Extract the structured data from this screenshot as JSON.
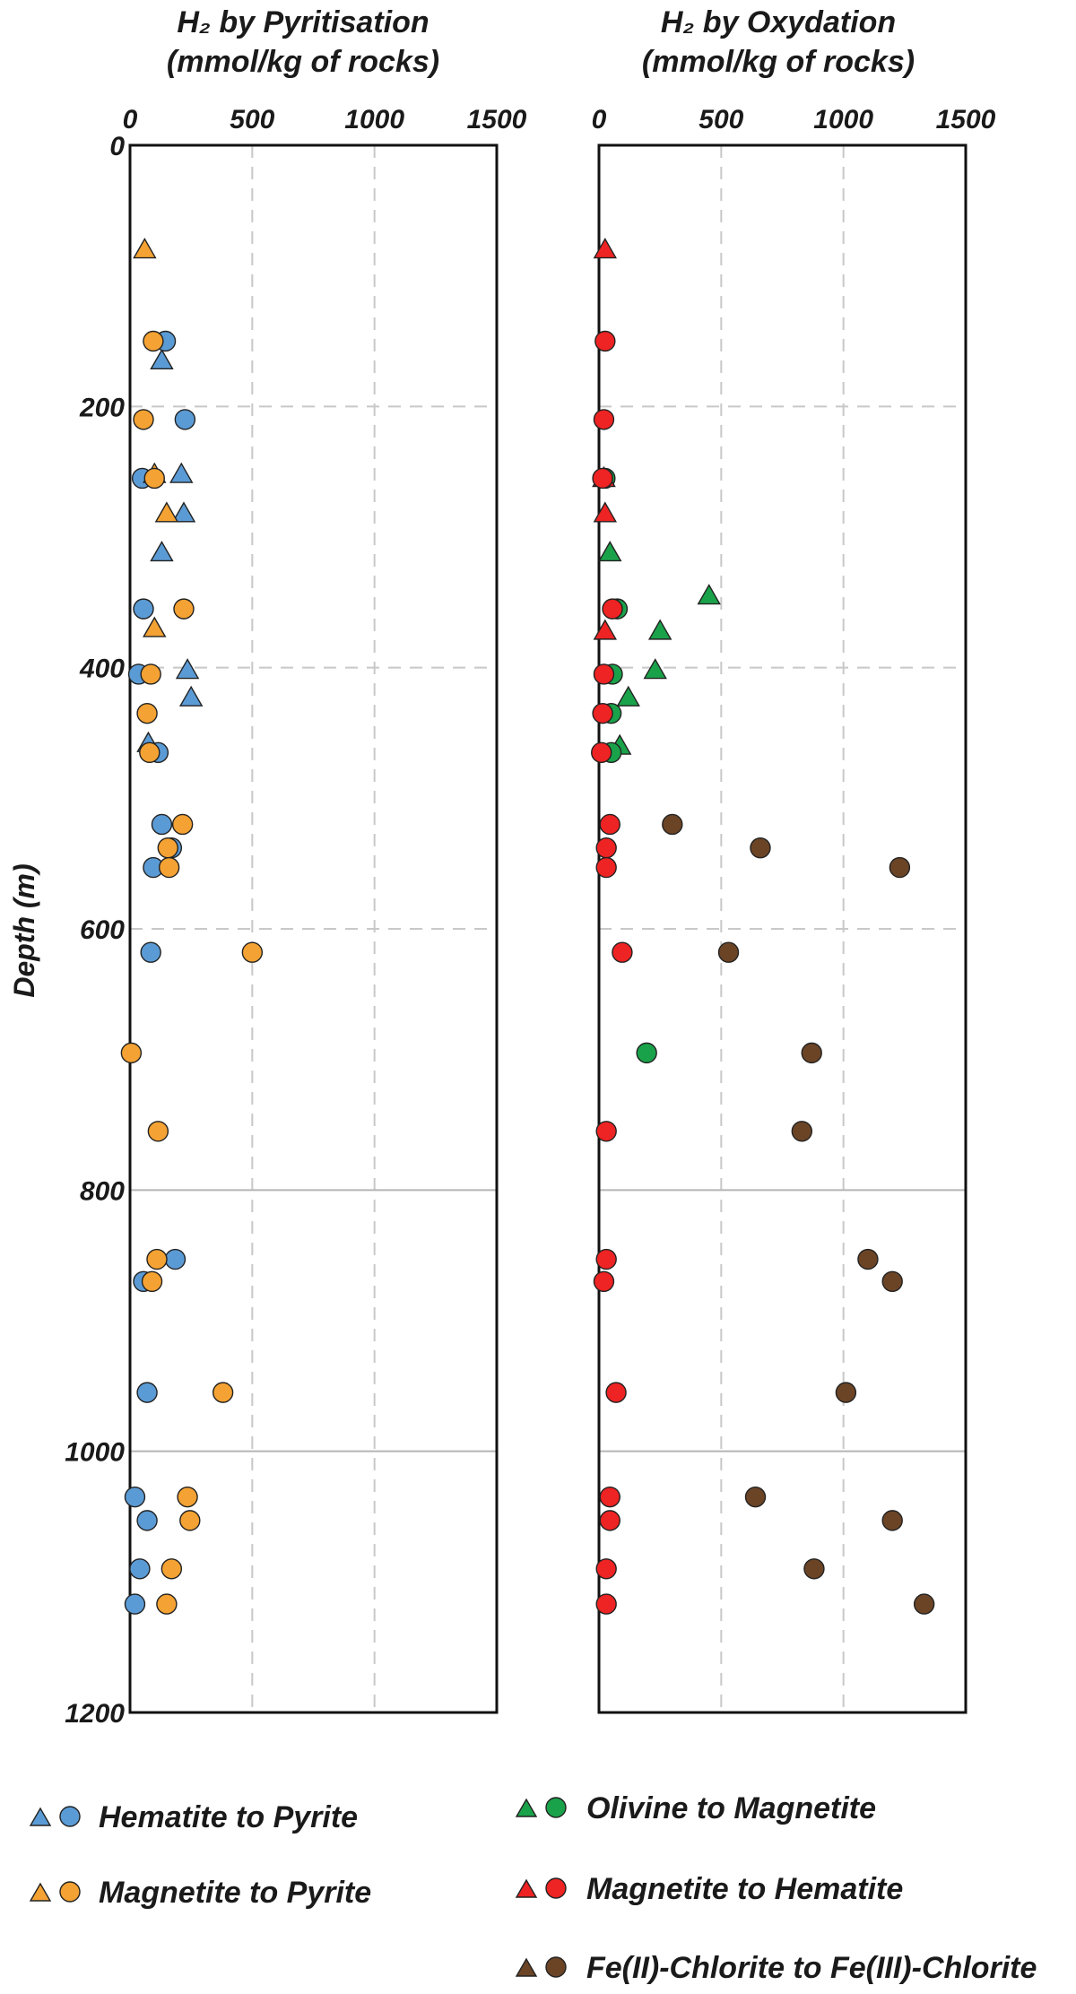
{
  "panels": [
    {
      "title_line1": "H₂ by Pyritisation",
      "title_line2": "(mmol/kg of rocks)"
    },
    {
      "title_line1": "H₂ by Oxydation",
      "title_line2": "(mmol/kg of rocks)"
    }
  ],
  "chart_data": [
    {
      "type": "scatter",
      "title": "H₂ by Pyritisation (mmol/kg of rocks)",
      "ylabel": "Depth (m)",
      "xlim": [
        0,
        1500
      ],
      "ylim": [
        0,
        1200
      ],
      "y_inverted": true,
      "x_axis_position": "top",
      "x_ticks": [
        "0",
        "500",
        "1000",
        "1500"
      ],
      "y_ticks": [
        "0",
        "200",
        "400",
        "600",
        "800",
        "1000",
        "1200"
      ],
      "grid": "vertical dashed at 500 and 1000; horizontal dashed at 200, 400, 600; horizontal solid at 800, 1000",
      "series": [
        {
          "name": "Hematite to Pyrite",
          "color": "#5b9bd5",
          "marker": "triangle",
          "points": [
            [
              130,
              165
            ],
            [
              210,
              252
            ],
            [
              220,
              282
            ],
            [
              130,
              312
            ],
            [
              235,
              402
            ],
            [
              250,
              423
            ],
            [
              75,
              458
            ]
          ]
        },
        {
          "name": "Hematite to Pyrite",
          "color": "#5b9bd5",
          "marker": "circle",
          "points": [
            [
              145,
              150
            ],
            [
              225,
              210
            ],
            [
              50,
              255
            ],
            [
              55,
              355
            ],
            [
              35,
              405
            ],
            [
              115,
              465
            ],
            [
              130,
              520
            ],
            [
              170,
              538
            ],
            [
              95,
              553
            ],
            [
              85,
              618
            ],
            [
              185,
              853
            ],
            [
              55,
              870
            ],
            [
              70,
              955
            ],
            [
              20,
              1035
            ],
            [
              70,
              1053
            ],
            [
              40,
              1090
            ],
            [
              20,
              1117
            ]
          ]
        },
        {
          "name": "Magnetite to Pyrite",
          "color": "#f4a233",
          "marker": "triangle",
          "points": [
            [
              60,
              80
            ],
            [
              100,
              252
            ],
            [
              150,
              282
            ],
            [
              100,
              370
            ]
          ]
        },
        {
          "name": "Magnetite to Pyrite",
          "color": "#f4a233",
          "marker": "circle",
          "points": [
            [
              95,
              150
            ],
            [
              55,
              210
            ],
            [
              100,
              255
            ],
            [
              220,
              355
            ],
            [
              85,
              405
            ],
            [
              70,
              435
            ],
            [
              80,
              465
            ],
            [
              215,
              520
            ],
            [
              155,
              538
            ],
            [
              160,
              553
            ],
            [
              500,
              618
            ],
            [
              5,
              695
            ],
            [
              115,
              755
            ],
            [
              110,
              853
            ],
            [
              90,
              870
            ],
            [
              380,
              955
            ],
            [
              235,
              1035
            ],
            [
              245,
              1053
            ],
            [
              170,
              1090
            ],
            [
              150,
              1117
            ]
          ]
        }
      ]
    },
    {
      "type": "scatter",
      "title": "H₂ by Oxydation (mmol/kg of rocks)",
      "ylabel": "Depth (m)",
      "xlim": [
        0,
        1500
      ],
      "ylim": [
        0,
        1200
      ],
      "y_inverted": true,
      "x_axis_position": "top",
      "x_ticks": [
        "0",
        "500",
        "1000",
        "1500"
      ],
      "y_ticks": [
        "0",
        "200",
        "400",
        "600",
        "800",
        "1000",
        "1200"
      ],
      "grid": "vertical dashed at 500 and 1000; horizontal dashed at 200, 400, 600; horizontal solid at 800, 1000",
      "series": [
        {
          "name": "Olivine to Magnetite",
          "color": "#1aa24a",
          "marker": "triangle",
          "points": [
            [
              20,
              255
            ],
            [
              45,
              312
            ],
            [
              450,
              345
            ],
            [
              250,
              372
            ],
            [
              230,
              402
            ],
            [
              120,
              423
            ],
            [
              85,
              460
            ]
          ]
        },
        {
          "name": "Olivine to Magnetite",
          "color": "#1aa24a",
          "marker": "circle",
          "points": [
            [
              25,
              255
            ],
            [
              75,
              355
            ],
            [
              55,
              405
            ],
            [
              50,
              435
            ],
            [
              50,
              465
            ],
            [
              195,
              695
            ]
          ]
        },
        {
          "name": "Magnetite to Hematite",
          "color": "#ee2323",
          "marker": "triangle",
          "points": [
            [
              25,
              80
            ],
            [
              20,
              255
            ],
            [
              25,
              282
            ],
            [
              25,
              372
            ]
          ]
        },
        {
          "name": "Magnetite to Hematite",
          "color": "#ee2323",
          "marker": "circle",
          "points": [
            [
              25,
              150
            ],
            [
              20,
              210
            ],
            [
              15,
              255
            ],
            [
              55,
              355
            ],
            [
              20,
              405
            ],
            [
              15,
              435
            ],
            [
              10,
              465
            ],
            [
              45,
              520
            ],
            [
              30,
              538
            ],
            [
              30,
              553
            ],
            [
              95,
              618
            ],
            [
              30,
              755
            ],
            [
              30,
              853
            ],
            [
              20,
              870
            ],
            [
              70,
              955
            ],
            [
              45,
              1035
            ],
            [
              45,
              1053
            ],
            [
              30,
              1090
            ],
            [
              30,
              1117
            ]
          ]
        },
        {
          "name": "Fe(II)-Chlorite to Fe(III)-Chlorite",
          "color": "#6b4426",
          "marker": "circle",
          "points": [
            [
              300,
              520
            ],
            [
              660,
              538
            ],
            [
              1230,
              553
            ],
            [
              530,
              618
            ],
            [
              870,
              695
            ],
            [
              830,
              755
            ],
            [
              1100,
              853
            ],
            [
              1200,
              870
            ],
            [
              1010,
              955
            ],
            [
              640,
              1035
            ],
            [
              1200,
              1053
            ],
            [
              880,
              1090
            ],
            [
              1330,
              1117
            ]
          ]
        }
      ]
    }
  ],
  "legend": [
    {
      "label": "Hematite to Pyrite",
      "color": "#5b9bd5"
    },
    {
      "label": "Magnetite to Pyrite",
      "color": "#f4a233"
    },
    {
      "label": "Olivine to Magnetite",
      "color": "#1aa24a"
    },
    {
      "label": "Magnetite to Hematite",
      "color": "#ee2323"
    },
    {
      "label": "Fe(II)-Chlorite to Fe(III)-Chlorite",
      "color": "#6b4426"
    }
  ]
}
